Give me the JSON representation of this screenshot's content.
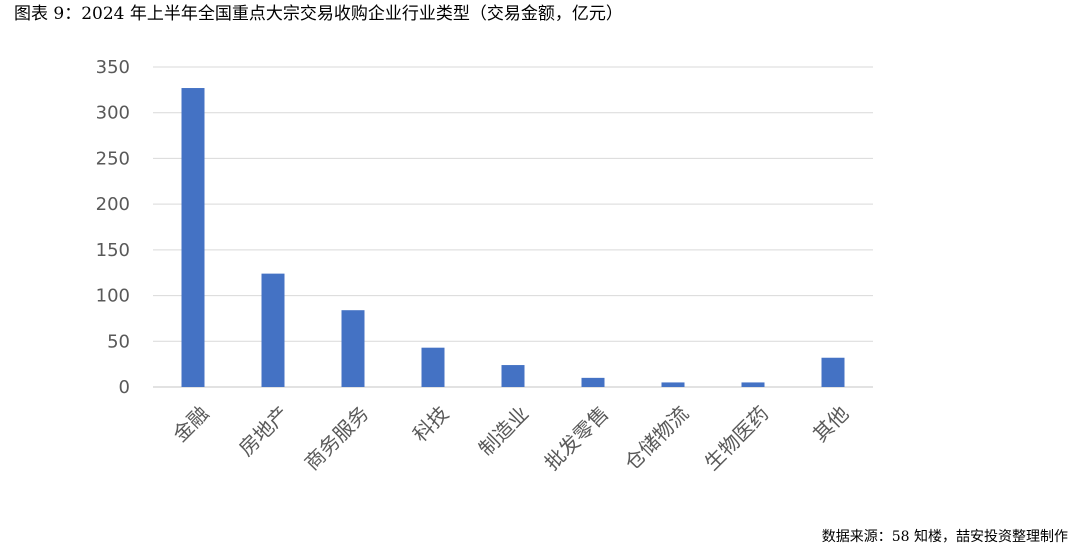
{
  "title": "图表 9：2024 年上半年全国重点大宗交易收购企业行业类型（交易金额，亿元）",
  "source": "数据来源：58 知楼，喆安投资整理制作",
  "colors": {
    "bar": "#4472C4",
    "grid": "#D9D9D9",
    "axis_text": "#595959"
  },
  "chart_data": {
    "type": "bar",
    "title": "图表 9：2024 年上半年全国重点大宗交易收购企业行业类型（交易金额，亿元）",
    "xlabel": "",
    "ylabel": "",
    "categories": [
      "金融",
      "房地产",
      "商务服务",
      "科技",
      "制造业",
      "批发零售",
      "仓储物流",
      "生物医药",
      "其他"
    ],
    "values": [
      327,
      124,
      84,
      43,
      24,
      10,
      5,
      5,
      32
    ],
    "ylim": [
      0,
      350
    ],
    "yticks": [
      0,
      50,
      100,
      150,
      200,
      250,
      300,
      350
    ],
    "grid": true,
    "legend": "none"
  }
}
